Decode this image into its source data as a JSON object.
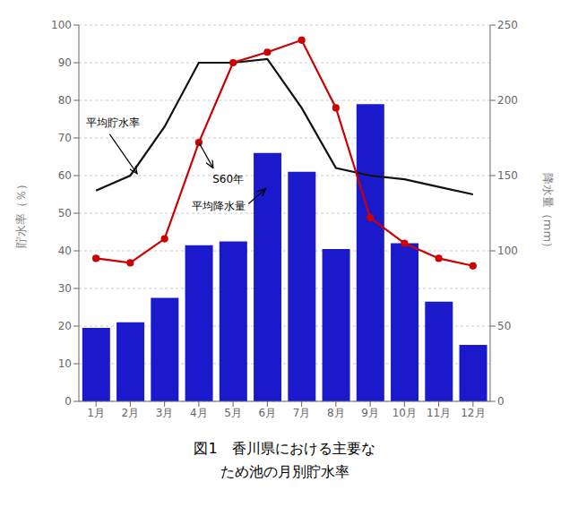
{
  "chart_data": {
    "type": "bar",
    "categories": [
      "1月",
      "2月",
      "3月",
      "4月",
      "5月",
      "6月",
      "7月",
      "8月",
      "9月",
      "10月",
      "11月",
      "12月"
    ],
    "series": [
      {
        "type": "bar",
        "color": "#1a1acc",
        "values": [
          19.5,
          21,
          27.5,
          41.5,
          42.5,
          66,
          61,
          40.5,
          79,
          42,
          26.5,
          15
        ]
      },
      {
        "type": "line",
        "color": "#111111",
        "values": [
          56,
          60,
          73,
          90,
          90,
          91,
          78,
          62,
          60,
          59,
          57,
          55
        ]
      },
      {
        "type": "line",
        "color": "#cc0000",
        "marker": "circle",
        "axis": "y2",
        "values": [
          95,
          92,
          108,
          172,
          225,
          232,
          240,
          195,
          122,
          105,
          95,
          90
        ]
      }
    ],
    "ylabel": "貯水率（％）",
    "y2label": "降水量（mm）",
    "ylim": [
      0,
      100
    ],
    "yticks": [
      0,
      10,
      20,
      30,
      40,
      50,
      60,
      70,
      80,
      90,
      100
    ],
    "y2lim": [
      0,
      250
    ],
    "y2ticks": [
      0,
      50,
      100,
      150,
      200,
      250
    ],
    "grid": true,
    "annotations": [
      "平均貯水率",
      "S60年",
      "平均降水量"
    ],
    "caption": "図1　香川県における主要な\nため池の月別貯水率"
  }
}
